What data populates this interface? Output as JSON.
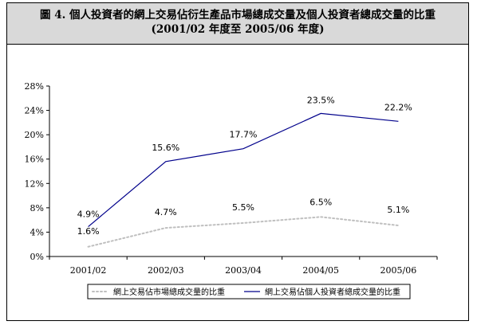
{
  "chart_data": {
    "type": "line",
    "title": "圖 4.  個人投資者的網上交易佔衍生產品市場總成交量及個人投資者總成交量的比重",
    "subtitle": "(2001/02 年度至 2005/06 年度)",
    "categories": [
      "2001/02",
      "2002/03",
      "2003/04",
      "2004/05",
      "2005/06"
    ],
    "ylim": [
      0,
      28
    ],
    "yticks": [
      0,
      4,
      8,
      12,
      16,
      20,
      24,
      28
    ],
    "ytick_labels": [
      "0%",
      "4%",
      "8%",
      "12%",
      "16%",
      "20%",
      "24%",
      "28%"
    ],
    "series": [
      {
        "name": "網上交易佔市場總成交量的比重",
        "values": [
          1.6,
          4.7,
          5.5,
          6.5,
          5.1
        ],
        "labels": [
          "1.6%",
          "4.7%",
          "5.5%",
          "6.5%",
          "5.1%"
        ],
        "color": "#bfbfbf",
        "style": "dotted"
      },
      {
        "name": "網上交易佔個人投資者總成交量的比重",
        "values": [
          4.9,
          15.6,
          17.7,
          23.5,
          22.2
        ],
        "labels": [
          "4.9%",
          "15.6%",
          "17.7%",
          "23.5%",
          "22.2%"
        ],
        "color": "#00008b",
        "style": "solid"
      }
    ],
    "grid": false,
    "legend_position": "bottom"
  }
}
